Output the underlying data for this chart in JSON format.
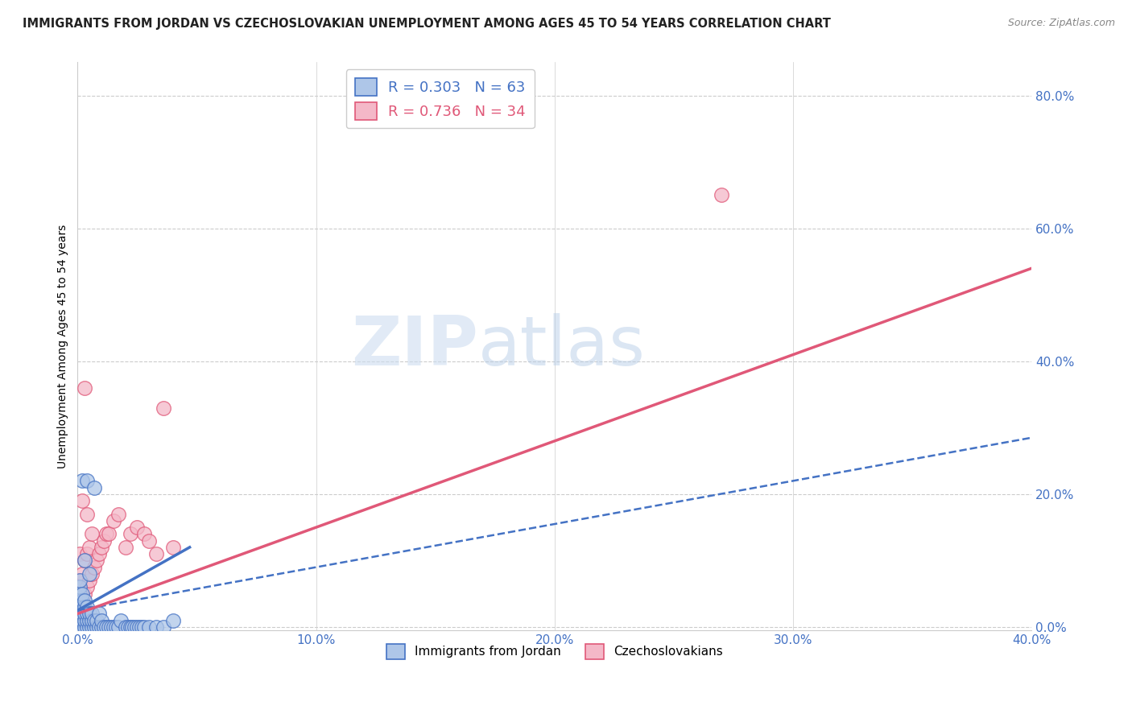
{
  "title": "IMMIGRANTS FROM JORDAN VS CZECHOSLOVAKIAN UNEMPLOYMENT AMONG AGES 45 TO 54 YEARS CORRELATION CHART",
  "source": "Source: ZipAtlas.com",
  "xlabel": "",
  "ylabel": "Unemployment Among Ages 45 to 54 years",
  "legend_label_1": "Immigrants from Jordan",
  "legend_label_2": "Czechoslovakians",
  "r1": 0.303,
  "n1": 63,
  "r2": 0.736,
  "n2": 34,
  "color1": "#aec6e8",
  "color2": "#f4b8c8",
  "line_color1": "#4472c4",
  "line_color2": "#e05878",
  "xlim": [
    0.0,
    0.4
  ],
  "ylim": [
    -0.005,
    0.85
  ],
  "x_ticks": [
    0.0,
    0.1,
    0.2,
    0.3,
    0.4
  ],
  "y_ticks": [
    0.0,
    0.2,
    0.4,
    0.6,
    0.8
  ],
  "title_fontsize": 11,
  "axis_label_fontsize": 10,
  "tick_label_color": "#4472c4",
  "background_color": "#ffffff",
  "watermark_zip": "ZIP",
  "watermark_atlas": "atlas",
  "blue_points_x": [
    0.001,
    0.001,
    0.001,
    0.001,
    0.001,
    0.001,
    0.001,
    0.001,
    0.002,
    0.002,
    0.002,
    0.002,
    0.002,
    0.002,
    0.002,
    0.003,
    0.003,
    0.003,
    0.003,
    0.003,
    0.003,
    0.004,
    0.004,
    0.004,
    0.004,
    0.004,
    0.005,
    0.005,
    0.005,
    0.005,
    0.006,
    0.006,
    0.006,
    0.007,
    0.007,
    0.007,
    0.008,
    0.008,
    0.009,
    0.009,
    0.01,
    0.01,
    0.011,
    0.012,
    0.013,
    0.014,
    0.015,
    0.016,
    0.017,
    0.018,
    0.02,
    0.021,
    0.022,
    0.023,
    0.024,
    0.025,
    0.026,
    0.027,
    0.028,
    0.03,
    0.033,
    0.036,
    0.04
  ],
  "blue_points_y": [
    0.0,
    0.01,
    0.02,
    0.03,
    0.04,
    0.05,
    0.06,
    0.07,
    0.0,
    0.01,
    0.02,
    0.03,
    0.04,
    0.05,
    0.22,
    0.0,
    0.01,
    0.02,
    0.03,
    0.04,
    0.1,
    0.0,
    0.01,
    0.02,
    0.03,
    0.22,
    0.0,
    0.01,
    0.02,
    0.08,
    0.0,
    0.01,
    0.02,
    0.0,
    0.01,
    0.21,
    0.0,
    0.01,
    0.0,
    0.02,
    0.0,
    0.01,
    0.0,
    0.0,
    0.0,
    0.0,
    0.0,
    0.0,
    0.0,
    0.01,
    0.0,
    0.0,
    0.0,
    0.0,
    0.0,
    0.0,
    0.0,
    0.0,
    0.0,
    0.0,
    0.0,
    0.0,
    0.01
  ],
  "pink_points_x": [
    0.001,
    0.001,
    0.001,
    0.002,
    0.002,
    0.002,
    0.003,
    0.003,
    0.003,
    0.004,
    0.004,
    0.004,
    0.005,
    0.005,
    0.006,
    0.006,
    0.007,
    0.008,
    0.009,
    0.01,
    0.011,
    0.012,
    0.013,
    0.015,
    0.017,
    0.02,
    0.022,
    0.025,
    0.028,
    0.03,
    0.033,
    0.036,
    0.04,
    0.27
  ],
  "pink_points_y": [
    0.03,
    0.07,
    0.11,
    0.04,
    0.08,
    0.19,
    0.05,
    0.1,
    0.36,
    0.06,
    0.11,
    0.17,
    0.07,
    0.12,
    0.08,
    0.14,
    0.09,
    0.1,
    0.11,
    0.12,
    0.13,
    0.14,
    0.14,
    0.16,
    0.17,
    0.12,
    0.14,
    0.15,
    0.14,
    0.13,
    0.11,
    0.33,
    0.12,
    0.65
  ],
  "blue_solid_trend_x": [
    0.0,
    0.047
  ],
  "blue_solid_trend_y": [
    0.025,
    0.12
  ],
  "blue_dashed_trend_x": [
    0.0,
    0.4
  ],
  "blue_dashed_trend_y": [
    0.025,
    0.285
  ],
  "pink_solid_trend_x": [
    0.0,
    0.4
  ],
  "pink_solid_trend_y": [
    0.02,
    0.54
  ]
}
